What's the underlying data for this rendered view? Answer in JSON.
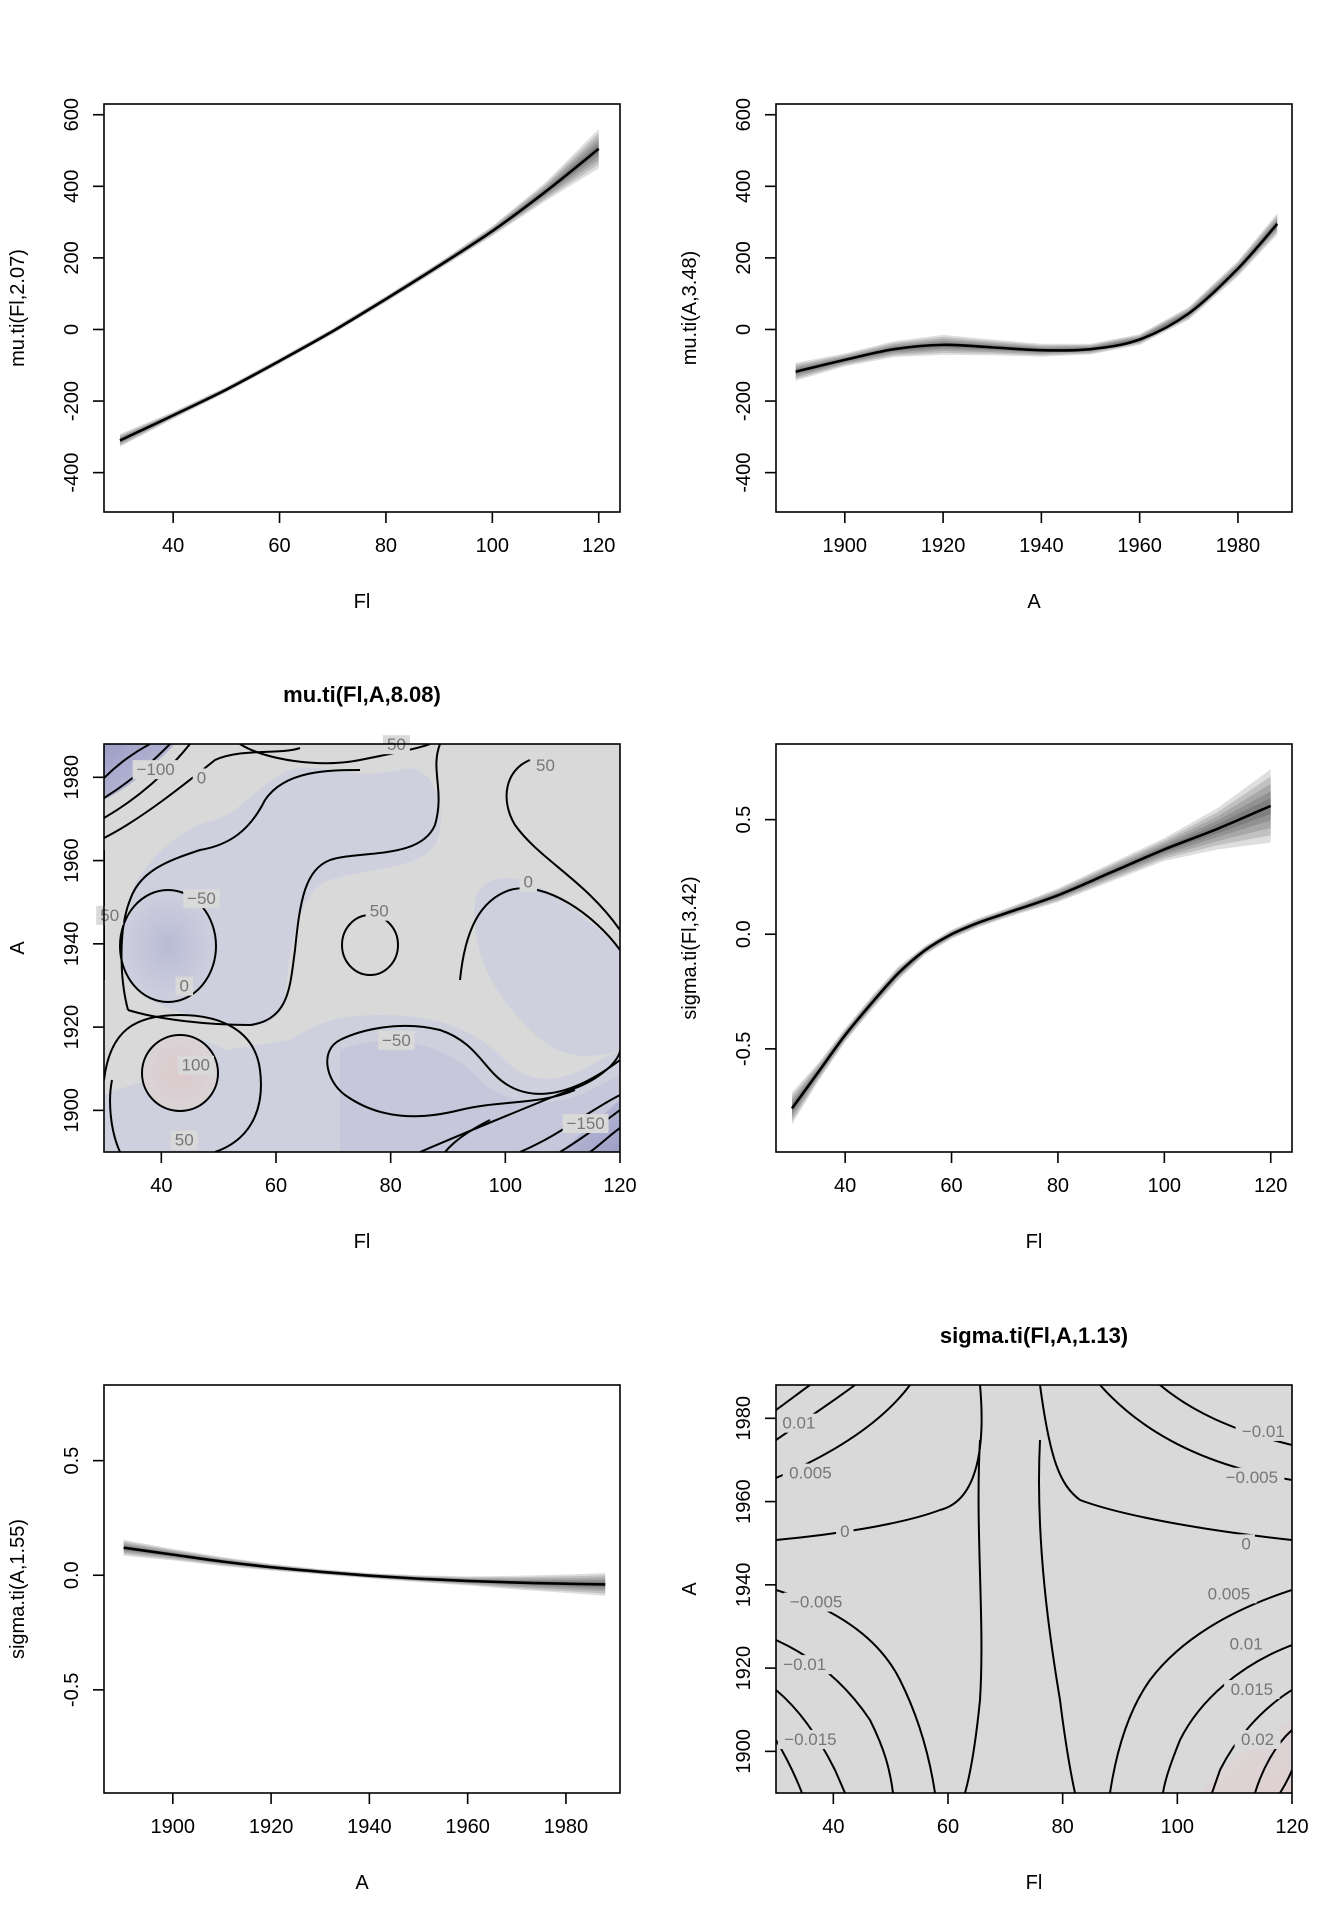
{
  "chart_data": [
    {
      "id": "p1",
      "type": "line",
      "title": "",
      "xlabel": "Fl",
      "ylabel": "mu.ti(Fl,2.07)",
      "xlim": [
        27,
        124
      ],
      "ylim": [
        -510,
        630
      ],
      "xticks": [
        40,
        60,
        80,
        100,
        120
      ],
      "yticks": [
        -400,
        -200,
        0,
        200,
        400,
        600
      ],
      "grid": false,
      "x": [
        30,
        40,
        50,
        60,
        70,
        80,
        90,
        100,
        110,
        120
      ],
      "y": [
        -310,
        -240,
        -168,
        -88,
        -5,
        85,
        178,
        275,
        385,
        505
      ],
      "band_halfwidth": [
        18,
        10,
        8,
        8,
        8,
        9,
        10,
        14,
        26,
        55
      ]
    },
    {
      "id": "p2",
      "type": "line",
      "title": "",
      "xlabel": "A",
      "ylabel": "mu.ti(A,3.48)",
      "xlim": [
        1886,
        1991
      ],
      "ylim": [
        -510,
        630
      ],
      "xticks": [
        1900,
        1920,
        1940,
        1960,
        1980
      ],
      "yticks": [
        -400,
        -200,
        0,
        200,
        400,
        600
      ],
      "grid": false,
      "x": [
        1890,
        1900,
        1910,
        1920,
        1930,
        1940,
        1950,
        1960,
        1970,
        1980,
        1988
      ],
      "y": [
        -118,
        -85,
        -55,
        -43,
        -50,
        -58,
        -55,
        -28,
        45,
        170,
        295
      ],
      "band_halfwidth": [
        25,
        18,
        22,
        28,
        22,
        18,
        15,
        15,
        18,
        22,
        30
      ]
    },
    {
      "id": "p3",
      "type": "heatmap",
      "title": "mu.ti(Fl,A,8.08)",
      "xlabel": "Fl",
      "ylabel": "A",
      "xlim": [
        30,
        120
      ],
      "ylim": [
        1890,
        1988
      ],
      "xticks": [
        40,
        60,
        80,
        100,
        120
      ],
      "yticks": [
        1900,
        1920,
        1940,
        1960,
        1980
      ],
      "grid": false,
      "contour_labels": [
        {
          "text": "-100",
          "x": 39,
          "y": 1981
        },
        {
          "text": "0",
          "x": 47,
          "y": 1979
        },
        {
          "text": "50",
          "x": 81,
          "y": 1987
        },
        {
          "text": "50",
          "x": 107,
          "y": 1982
        },
        {
          "text": "50",
          "x": 31,
          "y": 1946
        },
        {
          "text": "-50",
          "x": 47,
          "y": 1950
        },
        {
          "text": "50",
          "x": 78,
          "y": 1947
        },
        {
          "text": "0",
          "x": 104,
          "y": 1954
        },
        {
          "text": "0",
          "x": 44,
          "y": 1929
        },
        {
          "text": "-50",
          "x": 81,
          "y": 1916
        },
        {
          "text": "100",
          "x": 46,
          "y": 1910
        },
        {
          "text": "50",
          "x": 44,
          "y": 1892
        },
        {
          "text": "-150",
          "x": 114,
          "y": 1896
        }
      ]
    },
    {
      "id": "p4",
      "type": "line",
      "title": "",
      "xlabel": "Fl",
      "ylabel": "sigma.ti(Fl,3.42)",
      "xlim": [
        27,
        124
      ],
      "ylim": [
        -0.95,
        0.83
      ],
      "xticks": [
        40,
        60,
        80,
        100,
        120
      ],
      "yticks": [
        -0.5,
        0.0,
        0.5
      ],
      "grid": false,
      "x": [
        30,
        35,
        40,
        45,
        50,
        55,
        60,
        65,
        70,
        80,
        90,
        100,
        110,
        120
      ],
      "y": [
        -0.76,
        -0.6,
        -0.44,
        -0.3,
        -0.17,
        -0.07,
        0.0,
        0.05,
        0.09,
        0.17,
        0.27,
        0.37,
        0.46,
        0.56
      ],
      "band_halfwidth": [
        0.07,
        0.04,
        0.03,
        0.03,
        0.03,
        0.02,
        0.02,
        0.02,
        0.02,
        0.03,
        0.04,
        0.05,
        0.09,
        0.16
      ]
    },
    {
      "id": "p5",
      "type": "line",
      "title": "",
      "xlabel": "A",
      "ylabel": "sigma.ti(A,1.55)",
      "xlim": [
        1886,
        1991
      ],
      "ylim": [
        -0.95,
        0.83
      ],
      "xticks": [
        1900,
        1920,
        1940,
        1960,
        1980
      ],
      "yticks": [
        -0.5,
        0.0,
        0.5
      ],
      "grid": false,
      "x": [
        1890,
        1900,
        1910,
        1920,
        1930,
        1940,
        1950,
        1960,
        1970,
        1980,
        1988
      ],
      "y": [
        0.12,
        0.09,
        0.06,
        0.035,
        0.015,
        -0.002,
        -0.015,
        -0.025,
        -0.032,
        -0.037,
        -0.04
      ],
      "band_halfwidth": [
        0.035,
        0.025,
        0.02,
        0.015,
        0.012,
        0.012,
        0.015,
        0.02,
        0.03,
        0.04,
        0.05
      ]
    },
    {
      "id": "p6",
      "type": "heatmap",
      "title": "sigma.ti(Fl,A,1.13)",
      "xlabel": "Fl",
      "ylabel": "A",
      "xlim": [
        30,
        120
      ],
      "ylim": [
        1890,
        1988
      ],
      "xticks": [
        40,
        60,
        80,
        100,
        120
      ],
      "yticks": [
        1900,
        1920,
        1940,
        1960,
        1980
      ],
      "grid": false,
      "contour_labels": [
        {
          "text": "0.01",
          "x": 34,
          "y": 1978
        },
        {
          "text": "-0.01",
          "x": 115,
          "y": 1976
        },
        {
          "text": "0.005",
          "x": 36,
          "y": 1966
        },
        {
          "text": "-0.005",
          "x": 113,
          "y": 1965
        },
        {
          "text": "0",
          "x": 42,
          "y": 1952
        },
        {
          "text": "0",
          "x": 112,
          "y": 1949
        },
        {
          "text": "-0.005",
          "x": 37,
          "y": 1935
        },
        {
          "text": "0.005",
          "x": 109,
          "y": 1937
        },
        {
          "text": "-0.01",
          "x": 35,
          "y": 1920
        },
        {
          "text": "0.01",
          "x": 112,
          "y": 1925
        },
        {
          "text": "-0.015",
          "x": 36,
          "y": 1902
        },
        {
          "text": "0.015",
          "x": 113,
          "y": 1914
        },
        {
          "text": "0.02",
          "x": 114,
          "y": 1902
        }
      ]
    }
  ]
}
